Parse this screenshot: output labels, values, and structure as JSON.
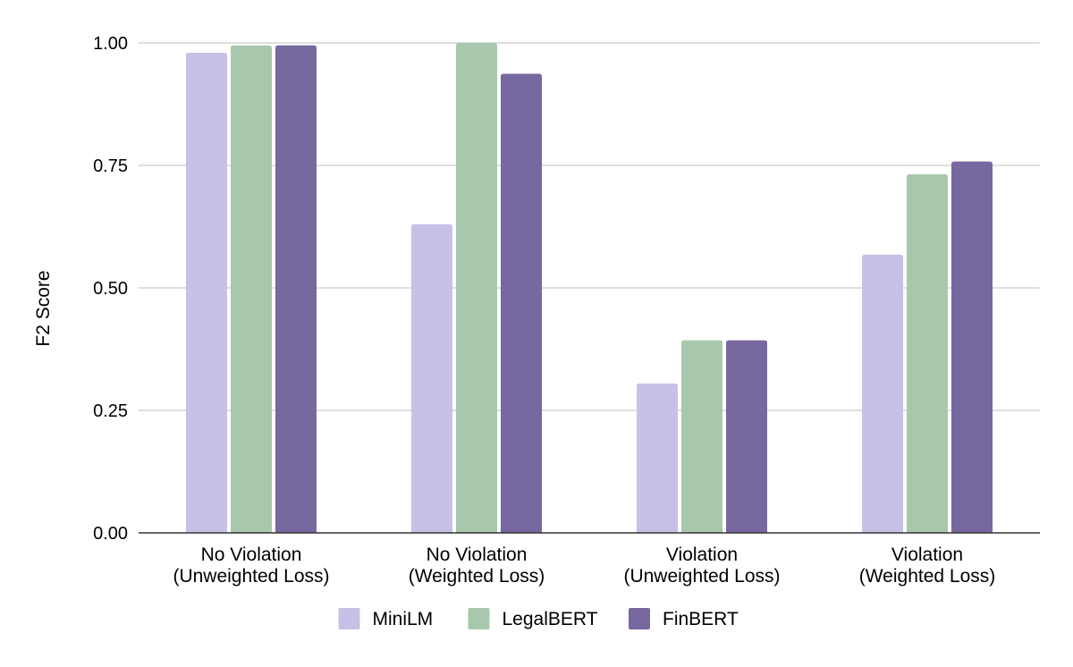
{
  "chart_data": {
    "type": "bar",
    "title": "",
    "xlabel": "",
    "ylabel": "F2 Score",
    "ylim": [
      0,
      1.0
    ],
    "yticks": [
      "0.00",
      "0.25",
      "0.50",
      "0.75",
      "1.00"
    ],
    "yticks_values": [
      0,
      0.25,
      0.5,
      0.75,
      1.0
    ],
    "grid": true,
    "legend_position": "bottom",
    "categories": [
      [
        "No Violation",
        "(Unweighted Loss)"
      ],
      [
        "No Violation",
        "(Weighted Loss)"
      ],
      [
        "Violation",
        "(Unweighted Loss)"
      ],
      [
        "Violation",
        "(Weighted Loss)"
      ]
    ],
    "series": [
      {
        "name": "MiniLM",
        "color": "#c8c0e6",
        "values": [
          0.98,
          0.63,
          0.305,
          0.568
        ]
      },
      {
        "name": "LegalBERT",
        "color": "#a8c8ad",
        "values": [
          0.995,
          1.0,
          0.393,
          0.732
        ]
      },
      {
        "name": "FinBERT",
        "color": "#7868a0",
        "values": [
          0.995,
          0.937,
          0.393,
          0.758
        ]
      }
    ]
  }
}
